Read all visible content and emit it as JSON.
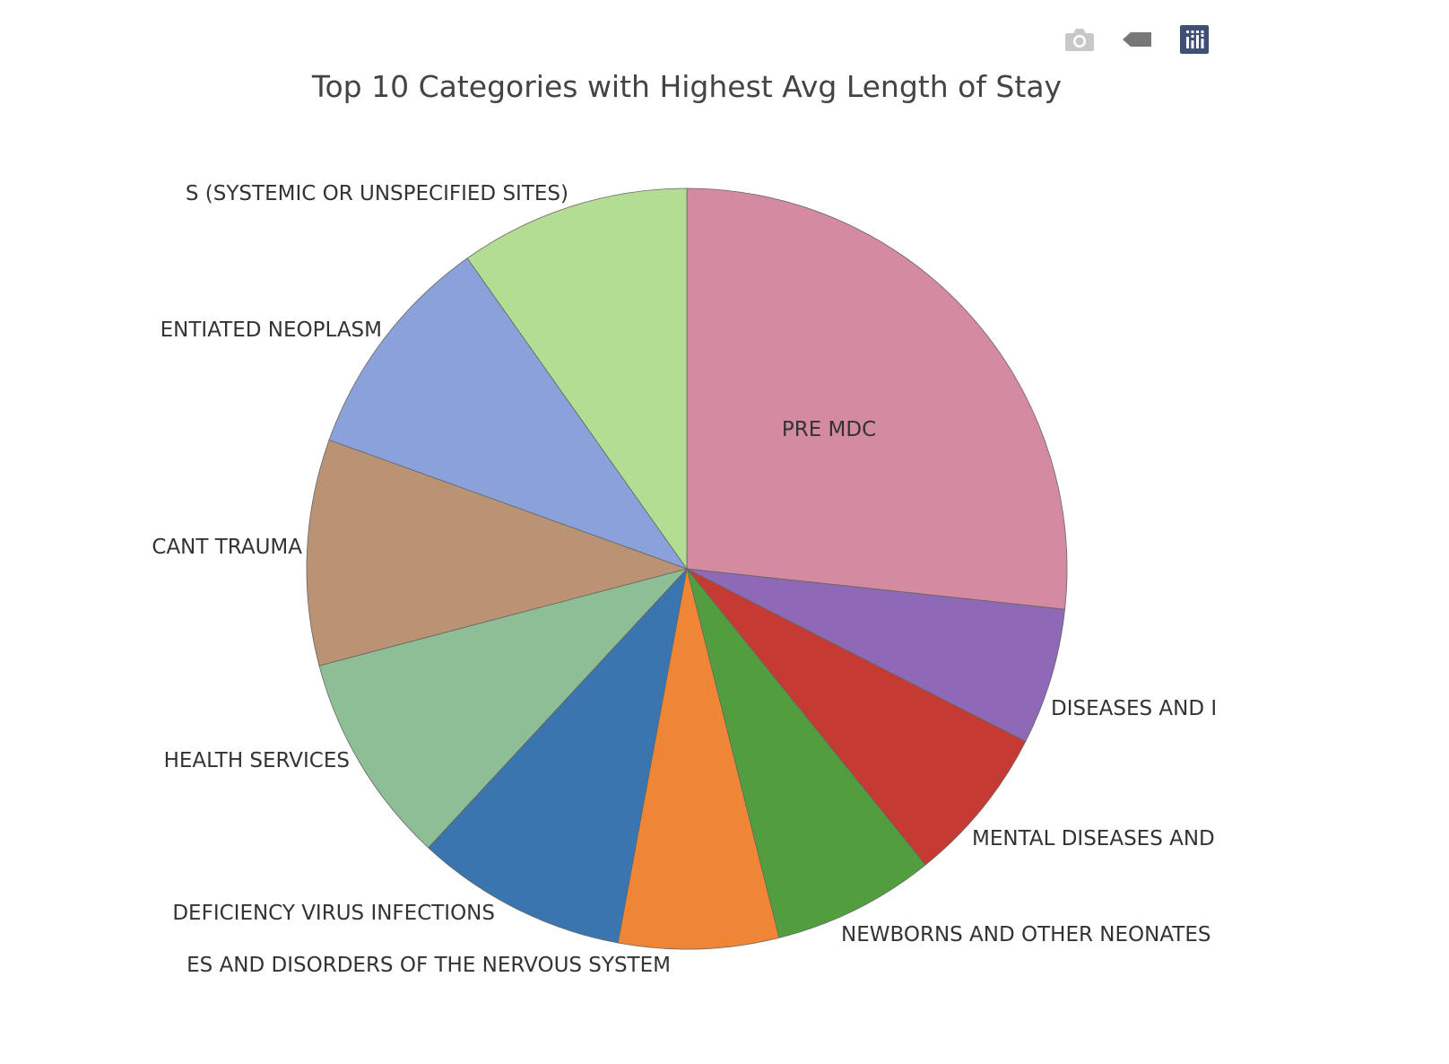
{
  "modebar": {
    "buttons": [
      {
        "name": "camera-icon",
        "title": "Download plot as a png"
      },
      {
        "name": "tag-icon",
        "title": "Show closest data on hover"
      },
      {
        "name": "plotly-logo-icon",
        "title": "Produced with Plotly"
      }
    ]
  },
  "chart_data": {
    "type": "pie",
    "title": "Top 10 Categories with Highest Avg Length of Stay",
    "slices": [
      {
        "label": "PRE MDC",
        "value": 26.7,
        "color": "#d48aa1",
        "text_inside": true
      },
      {
        "label": "DISEASES AND I",
        "value": 5.8,
        "color": "#8e69b5"
      },
      {
        "label": "MENTAL DISEASES AND",
        "value": 6.7,
        "color": "#c53b34"
      },
      {
        "label": "NEWBORNS AND OTHER NEONATES",
        "value": 6.9,
        "color": "#529e3f"
      },
      {
        "label": "ES AND DISORDERS OF THE NERVOUS SYSTEM",
        "value": 6.8,
        "color": "#ef8636"
      },
      {
        "label": "DEFICIENCY VIRUS INFECTIONS",
        "value": 9.0,
        "color": "#3b75af"
      },
      {
        "label": "HEALTH SERVICES",
        "value": 9.0,
        "color": "#8ebe96"
      },
      {
        "label": "CANT TRAUMA",
        "value": 9.6,
        "color": "#b99374"
      },
      {
        "label": "ENTIATED NEOPLASM",
        "value": 9.7,
        "color": "#8ba1d9"
      },
      {
        "label": "S (SYSTEMIC OR UNSPECIFIED SITES)",
        "value": 9.8,
        "color": "#b3dd93"
      }
    ],
    "legend": "none",
    "direction": "clockwise",
    "rotation": "starts at 12 o'clock"
  }
}
